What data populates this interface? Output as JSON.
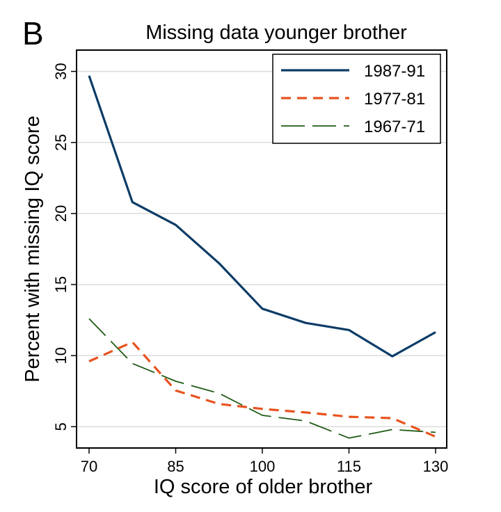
{
  "chart_data": {
    "type": "line",
    "panel_label": "B",
    "title": "Missing data younger brother",
    "xlabel": "IQ score of older brother",
    "ylabel": "Percent with missing IQ score",
    "xlim": [
      70,
      130
    ],
    "ylim": [
      3.5,
      31.5
    ],
    "xticks": [
      70,
      85,
      100,
      115,
      130
    ],
    "xtick_labels": [
      "70",
      "85",
      "100",
      "115",
      "130"
    ],
    "yticks": [
      5,
      10,
      15,
      20,
      25,
      30
    ],
    "ytick_labels": [
      "5",
      "10",
      "15",
      "20",
      "25",
      "30"
    ],
    "grid": true,
    "legend_position": "top-right",
    "x": [
      70,
      77.5,
      85,
      92.5,
      100,
      107.5,
      115,
      122.5,
      130
    ],
    "series": [
      {
        "name": "1987-91",
        "color": "#0c3c66",
        "style": "solid",
        "values": [
          29.7,
          20.8,
          19.2,
          16.5,
          13.3,
          12.3,
          11.8,
          9.95,
          11.65
        ]
      },
      {
        "name": "1977-81",
        "color": "#e8531f",
        "style": "dash",
        "values": [
          9.6,
          10.95,
          7.55,
          6.6,
          6.25,
          6.0,
          5.7,
          5.6,
          4.3
        ]
      },
      {
        "name": "1967-71",
        "color": "#1e5c14",
        "style": "longdash",
        "values": [
          12.6,
          9.45,
          8.2,
          7.35,
          5.8,
          5.4,
          4.2,
          4.8,
          4.6
        ]
      }
    ]
  }
}
